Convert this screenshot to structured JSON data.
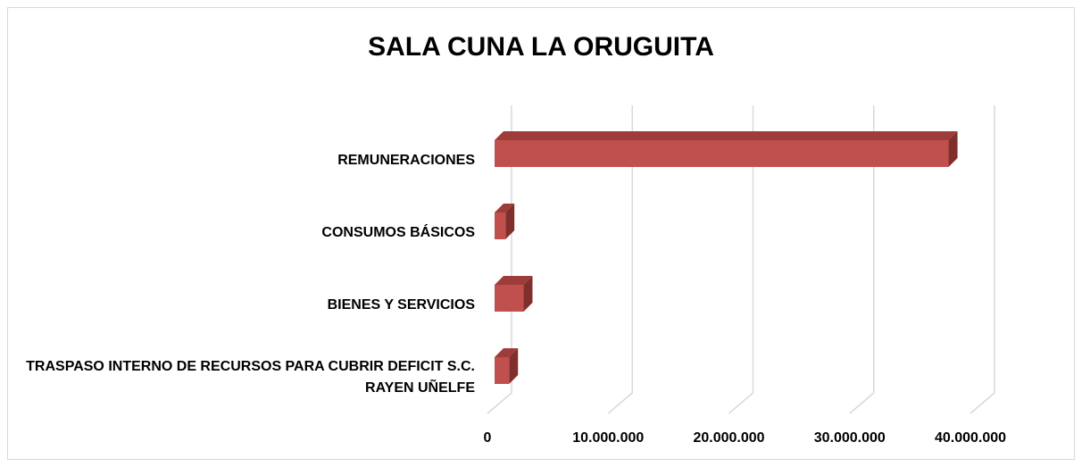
{
  "chart_data": {
    "type": "bar3d_horizontal",
    "title": "SALA CUNA LA ORUGUITA",
    "categories": [
      "REMUNERACIONES",
      "CONSUMOS BÁSICOS",
      "BIENES Y SERVICIOS",
      "TRASPASO INTERNO DE RECURSOS PARA CUBRIR DEFICIT S.C. RAYEN UÑELFE"
    ],
    "values": [
      37600000,
      900000,
      2400000,
      1200000
    ],
    "color": "#c0504d",
    "xlim": [
      0,
      40000000
    ],
    "xticks": [
      0,
      {
        "value": 10000000,
        "label": "10.000.000"
      },
      {
        "value": 20000000,
        "label": "20.000.000"
      },
      {
        "value": 30000000,
        "label": "30.000.000"
      },
      {
        "value": 40000000,
        "label": "40.000.000"
      }
    ],
    "grid": true
  }
}
